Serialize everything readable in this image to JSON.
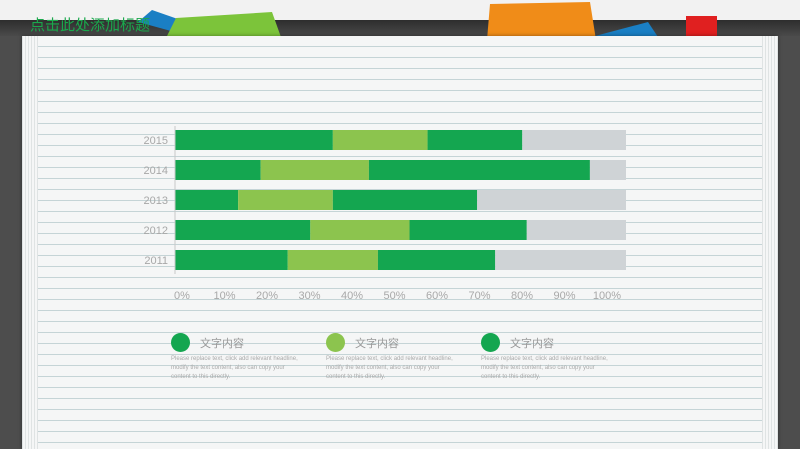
{
  "title": "点击此处添加标题",
  "colors": {
    "dark": "#14a650",
    "light": "#8cc44e",
    "rest": "#cfd3d6",
    "axis_text": "#a8a8a8",
    "board": "#4d4d4d",
    "paper": "#f5f6f6",
    "tab_green": "#7cc43a",
    "tab_blue": "#1a7fc4",
    "tab_orange": "#f08c18",
    "tab_red": "#e02020"
  },
  "chart_data": {
    "type": "bar",
    "orientation": "horizontal",
    "stacked": true,
    "categories": [
      "2015",
      "2014",
      "2013",
      "2012",
      "2011"
    ],
    "series": [
      {
        "values": [
          35,
          19,
          14,
          30,
          25
        ]
      },
      {
        "values": [
          21,
          24,
          21,
          22,
          20
        ]
      },
      {
        "values": [
          21,
          49,
          32,
          26,
          26
        ]
      },
      {
        "values": [
          23,
          8,
          33,
          22,
          29
        ]
      }
    ],
    "xlim": [
      0,
      100
    ],
    "x_ticks": [
      "0%",
      "10%",
      "20%",
      "30%",
      "40%",
      "50%",
      "60%",
      "70%",
      "80%",
      "90%",
      "100%"
    ],
    "grid": false,
    "legend_position": "bottom"
  },
  "legend": [
    {
      "label": "文字内容",
      "color": "#14a650",
      "desc": "Please replace text, click add relevant headline, modify the text content, also can copy your content to this directly."
    },
    {
      "label": "文字内容",
      "color": "#8cc44e",
      "desc": "Please replace text, click add relevant headline, modify the text content, also can copy your content to this directly."
    },
    {
      "label": "文字内容",
      "color": "#14a650",
      "desc": "Please replace text, click add relevant headline, modify the text content, also can copy your content to this directly."
    }
  ]
}
